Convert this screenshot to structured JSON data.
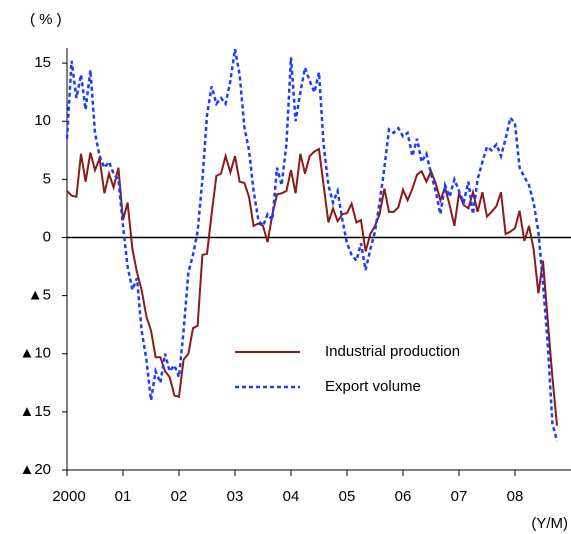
{
  "chart_data": {
    "type": "line",
    "y_unit": "( % )",
    "x_unit": "(Y/M)",
    "xlim": [
      2000,
      2009
    ],
    "xticks": [
      {
        "value": 2000,
        "label": "2000"
      },
      {
        "value": 2001,
        "label": "01"
      },
      {
        "value": 2002,
        "label": "02"
      },
      {
        "value": 2003,
        "label": "03"
      },
      {
        "value": 2004,
        "label": "04"
      },
      {
        "value": 2005,
        "label": "05"
      },
      {
        "value": 2006,
        "label": "06"
      },
      {
        "value": 2007,
        "label": "07"
      },
      {
        "value": 2008,
        "label": "08"
      }
    ],
    "ylim": [
      -20,
      16.3
    ],
    "yticks": [
      15,
      10,
      5,
      0,
      {
        "value": -5,
        "label": "▲5"
      },
      {
        "value": -10,
        "label": "▲10"
      },
      {
        "value": -15,
        "label": "▲15"
      },
      {
        "value": -20,
        "label": "▲20"
      }
    ],
    "legend": "center",
    "x": [
      2000,
      2000.083,
      2000.167,
      2000.25,
      2000.333,
      2000.417,
      2000.5,
      2000.583,
      2000.667,
      2000.75,
      2000.833,
      2000.917,
      2001,
      2001.083,
      2001.167,
      2001.25,
      2001.333,
      2001.417,
      2001.5,
      2001.583,
      2001.667,
      2001.75,
      2001.833,
      2001.917,
      2002,
      2002.083,
      2002.167,
      2002.25,
      2002.333,
      2002.417,
      2002.5,
      2002.583,
      2002.667,
      2002.75,
      2002.833,
      2002.917,
      2003,
      2003.083,
      2003.167,
      2003.25,
      2003.333,
      2003.417,
      2003.5,
      2003.583,
      2003.667,
      2003.75,
      2003.833,
      2003.917,
      2004,
      2004.083,
      2004.167,
      2004.25,
      2004.333,
      2004.417,
      2004.5,
      2004.583,
      2004.667,
      2004.75,
      2004.833,
      2004.917,
      2005,
      2005.083,
      2005.167,
      2005.25,
      2005.333,
      2005.417,
      2005.5,
      2005.583,
      2005.667,
      2005.75,
      2005.833,
      2005.917,
      2006,
      2006.083,
      2006.167,
      2006.25,
      2006.333,
      2006.417,
      2006.5,
      2006.583,
      2006.667,
      2006.75,
      2006.833,
      2006.917,
      2007,
      2007.083,
      2007.167,
      2007.25,
      2007.333,
      2007.417,
      2007.5,
      2007.583,
      2007.667,
      2007.75,
      2007.833,
      2007.917,
      2008,
      2008.083,
      2008.167,
      2008.25,
      2008.333,
      2008.417,
      2008.5,
      2008.583,
      2008.667,
      2008.75
    ],
    "series": [
      {
        "name": "Industrial production",
        "color": "#8b1a1a",
        "dash": "none",
        "values": [
          4,
          3.6,
          3.5,
          7.2,
          4.8,
          7.3,
          5.8,
          6.8,
          3.8,
          5.5,
          4.3,
          6.0,
          1.5,
          3.0,
          -1.0,
          -3.0,
          -4.5,
          -6.8,
          -8.0,
          -10.3,
          -10.3,
          -11.5,
          -12.0,
          -13.6,
          -13.7,
          -10.5,
          -10.0,
          -7.8,
          -7.6,
          -1.5,
          -1.4,
          2.0,
          5.3,
          5.5,
          7.0,
          5.6,
          7.0,
          4.8,
          4.7,
          3.5,
          1.0,
          1.2,
          1.0,
          -0.4,
          2.0,
          3.7,
          3.8,
          4.0,
          5.8,
          3.8,
          7.2,
          5.5,
          7.0,
          7.4,
          7.6,
          4.5,
          1.3,
          2.5,
          1.4,
          2.0,
          2.1,
          2.9,
          1.3,
          1.5,
          -1.2,
          0.3,
          1.0,
          2.0,
          4.2,
          2.2,
          2.2,
          2.6,
          4.1,
          3.2,
          4.2,
          5.4,
          5.7,
          4.8,
          5.7,
          4.7,
          3.2,
          4.3,
          2.8,
          1.0,
          3.8,
          2.8,
          2.5,
          3.9,
          2.2,
          3.9,
          1.8,
          2.2,
          2.7,
          3.9,
          0.3,
          0.5,
          0.8,
          2.3,
          -0.3,
          1.0,
          -1.0,
          -4.8,
          -2.0,
          -7.0,
          -12.0,
          -16.2
        ]
      },
      {
        "name": "Export volume",
        "color": "#1a3cff",
        "dash": "4,3",
        "values": [
          8.5,
          15.2,
          12.0,
          14.0,
          11.0,
          14.4,
          9.0,
          7.0,
          6.0,
          6.5,
          5.5,
          5.0,
          1.0,
          -2.5,
          -4.5,
          -3.5,
          -8.0,
          -10.5,
          -14.0,
          -11.5,
          -12.5,
          -10.0,
          -11.5,
          -11.0,
          -12.0,
          -8.0,
          -3.0,
          -1.5,
          0.5,
          5.0,
          10.5,
          13.0,
          11.5,
          12.0,
          11.5,
          13.5,
          16.2,
          14.0,
          9.5,
          7.5,
          4.0,
          1.5,
          1.0,
          2.0,
          1.5,
          6.0,
          4.5,
          8.0,
          15.5,
          10.0,
          12.5,
          14.6,
          13.5,
          12.5,
          14.2,
          8.0,
          4.5,
          3.0,
          4.0,
          1.5,
          -0.5,
          -1.5,
          -2.0,
          -0.5,
          -2.8,
          -1.0,
          0.5,
          3.0,
          6.0,
          9.3,
          9.0,
          9.4,
          8.7,
          9.0,
          7.0,
          8.5,
          6.5,
          7.2,
          5.5,
          4.0,
          2.0,
          4.5,
          3.5,
          5.0,
          4.0,
          3.0,
          4.8,
          2.0,
          5.0,
          6.5,
          7.8,
          7.5,
          8.0,
          7.0,
          8.5,
          10.3,
          9.8,
          6.0,
          5.2,
          4.5,
          3.0,
          0.5,
          -4.0,
          -9.0,
          -16.0,
          -17.5
        ]
      }
    ]
  }
}
